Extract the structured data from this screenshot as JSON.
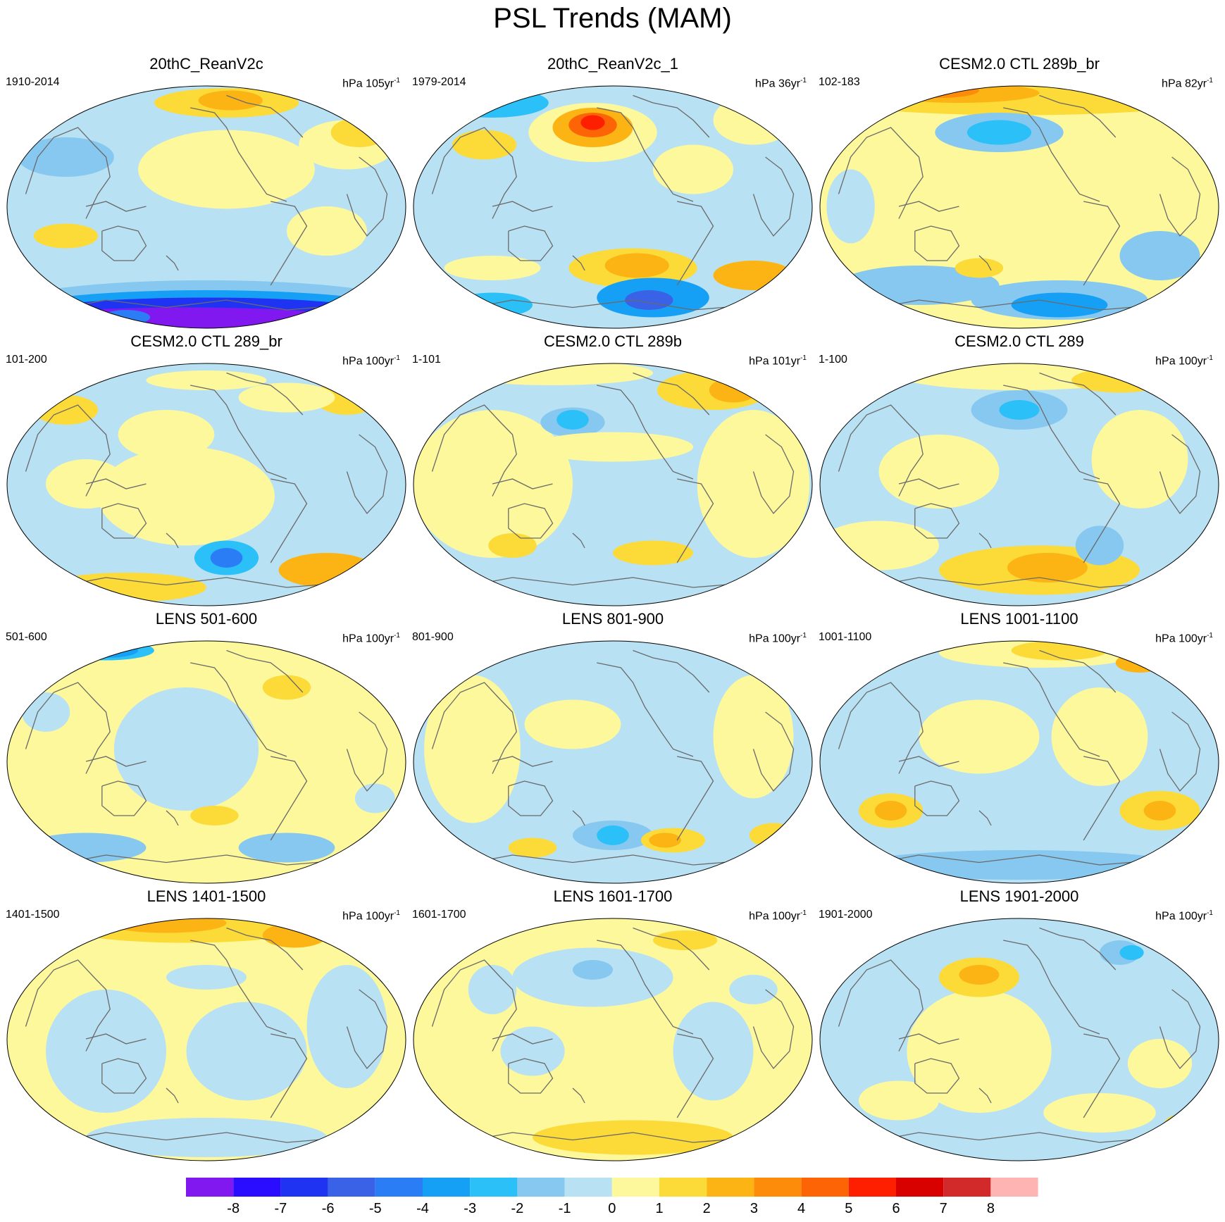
{
  "title": "PSL Trends (MAM)",
  "units_label": "hPa",
  "colorbar": {
    "colors": [
      "#8218f0",
      "#2a0cff",
      "#1f33f2",
      "#3a62e6",
      "#2a7df5",
      "#16a0f5",
      "#2bc0f7",
      "#86c8ef",
      "#b9e1f4",
      "#fdf89b",
      "#fcda38",
      "#fcb414",
      "#fc8c0a",
      "#fc6405",
      "#fe1e00",
      "#d90000",
      "#d22a2a",
      "#ffb4b4"
    ],
    "labels": [
      "-8",
      "-7",
      "-6",
      "-5",
      "-4",
      "-3",
      "-2",
      "-1",
      "0",
      "1",
      "2",
      "3",
      "4",
      "5",
      "6",
      "7",
      "8"
    ]
  },
  "panels": [
    {
      "title": "20thC_ReanV2c",
      "period": "1910-2014",
      "unit_prefix": "hPa 105yr",
      "unit_exp": "-1",
      "pattern": "rean1"
    },
    {
      "title": "20thC_ReanV2c_1",
      "period": "1979-2014",
      "unit_prefix": "hPa 36yr",
      "unit_exp": "-1",
      "pattern": "rean2"
    },
    {
      "title": "CESM2.0 CTL 289b_br",
      "period": "102-183",
      "unit_prefix": "hPa 82yr",
      "unit_exp": "-1",
      "pattern": "ctl289bbr"
    },
    {
      "title": "CESM2.0 CTL 289_br",
      "period": "101-200",
      "unit_prefix": "hPa 100yr",
      "unit_exp": "-1",
      "pattern": "ctl289br"
    },
    {
      "title": "CESM2.0 CTL 289b",
      "period": "1-101",
      "unit_prefix": "hPa 101yr",
      "unit_exp": "-1",
      "pattern": "ctl289b"
    },
    {
      "title": "CESM2.0 CTL 289",
      "period": "1-100",
      "unit_prefix": "hPa 100yr",
      "unit_exp": "-1",
      "pattern": "ctl289"
    },
    {
      "title": "LENS 501-600",
      "period": "501-600",
      "unit_prefix": "hPa 100yr",
      "unit_exp": "-1",
      "pattern": "lens501"
    },
    {
      "title": "LENS 801-900",
      "period": "801-900",
      "unit_prefix": "hPa 100yr",
      "unit_exp": "-1",
      "pattern": "lens801"
    },
    {
      "title": "LENS 1001-1100",
      "period": "1001-1100",
      "unit_prefix": "hPa 100yr",
      "unit_exp": "-1",
      "pattern": "lens1001"
    },
    {
      "title": "LENS 1401-1500",
      "period": "1401-1500",
      "unit_prefix": "hPa 100yr",
      "unit_exp": "-1",
      "pattern": "lens1401"
    },
    {
      "title": "LENS 1601-1700",
      "period": "1601-1700",
      "unit_prefix": "hPa 100yr",
      "unit_exp": "-1",
      "pattern": "lens1601"
    },
    {
      "title": "LENS 1901-2000",
      "period": "1901-2000",
      "unit_prefix": "hPa 100yr",
      "unit_exp": "-1",
      "pattern": "lens1901"
    }
  ]
}
